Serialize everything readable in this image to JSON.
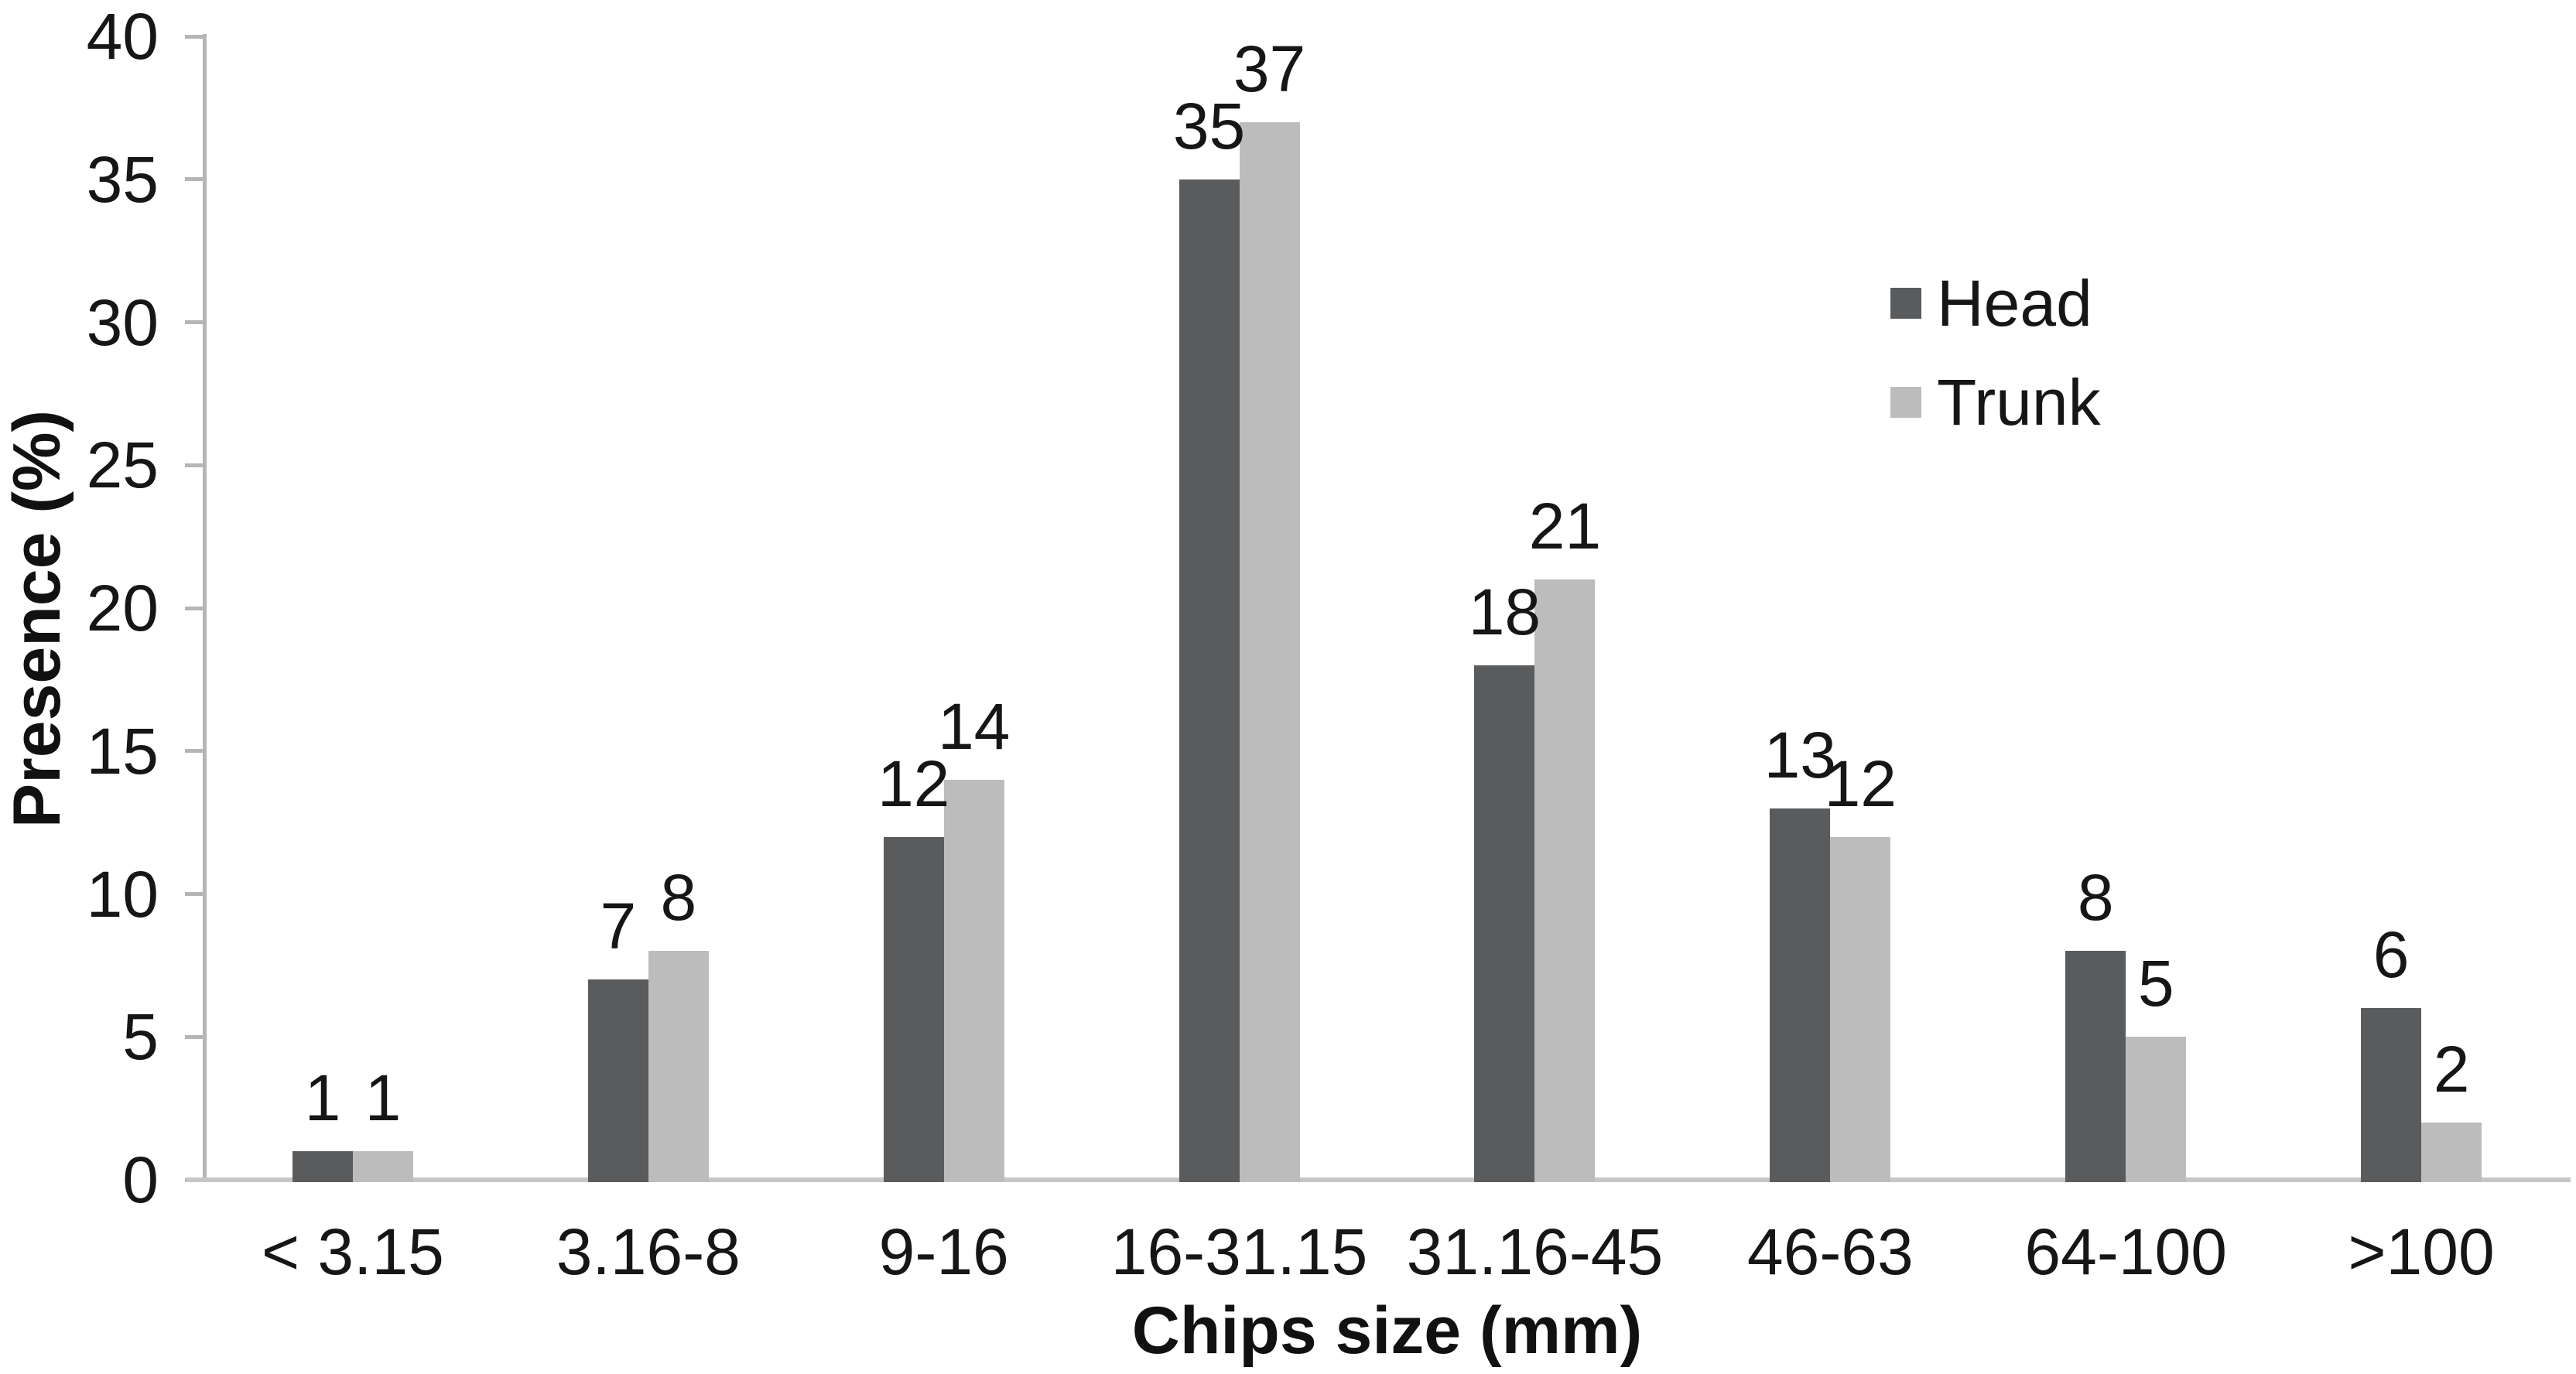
{
  "chart_data": {
    "type": "bar",
    "title": "",
    "xlabel": "Chips size (mm)",
    "ylabel": "Presence (%)",
    "categories": [
      "< 3.15",
      "3.16-8",
      "9-16",
      "16-31.15",
      "31.16-45",
      "46-63",
      "64-100",
      ">100"
    ],
    "series": [
      {
        "name": "Head",
        "color": "#5a5b5d",
        "values": [
          1,
          7,
          12,
          35,
          18,
          13,
          8,
          6
        ]
      },
      {
        "name": "Trunk",
        "color": "#bcbcbc",
        "values": [
          1,
          8,
          14,
          37,
          21,
          12,
          5,
          2
        ]
      }
    ],
    "data_labels": {
      "Head": [
        "1",
        "7",
        "12",
        "35",
        "18",
        "13",
        "8",
        "6"
      ],
      "Trunk": [
        "1",
        "8",
        "14",
        "37",
        "21",
        "12",
        "5",
        "2"
      ]
    },
    "ylim": [
      0,
      40
    ],
    "yticks": [
      "0",
      "5",
      "10",
      "15",
      "20",
      "25",
      "30",
      "35",
      "40"
    ],
    "grid": "off",
    "legend_position": "upper-right-inside",
    "bar_label_position": "outside-end"
  },
  "colors": {
    "background": "#ffffff",
    "axis_line": "#b5b5b5",
    "baseline": "#c6c6c6",
    "text": "#161616",
    "head_bar": "#5a5b5d",
    "trunk_bar": "#bcbcbc"
  }
}
